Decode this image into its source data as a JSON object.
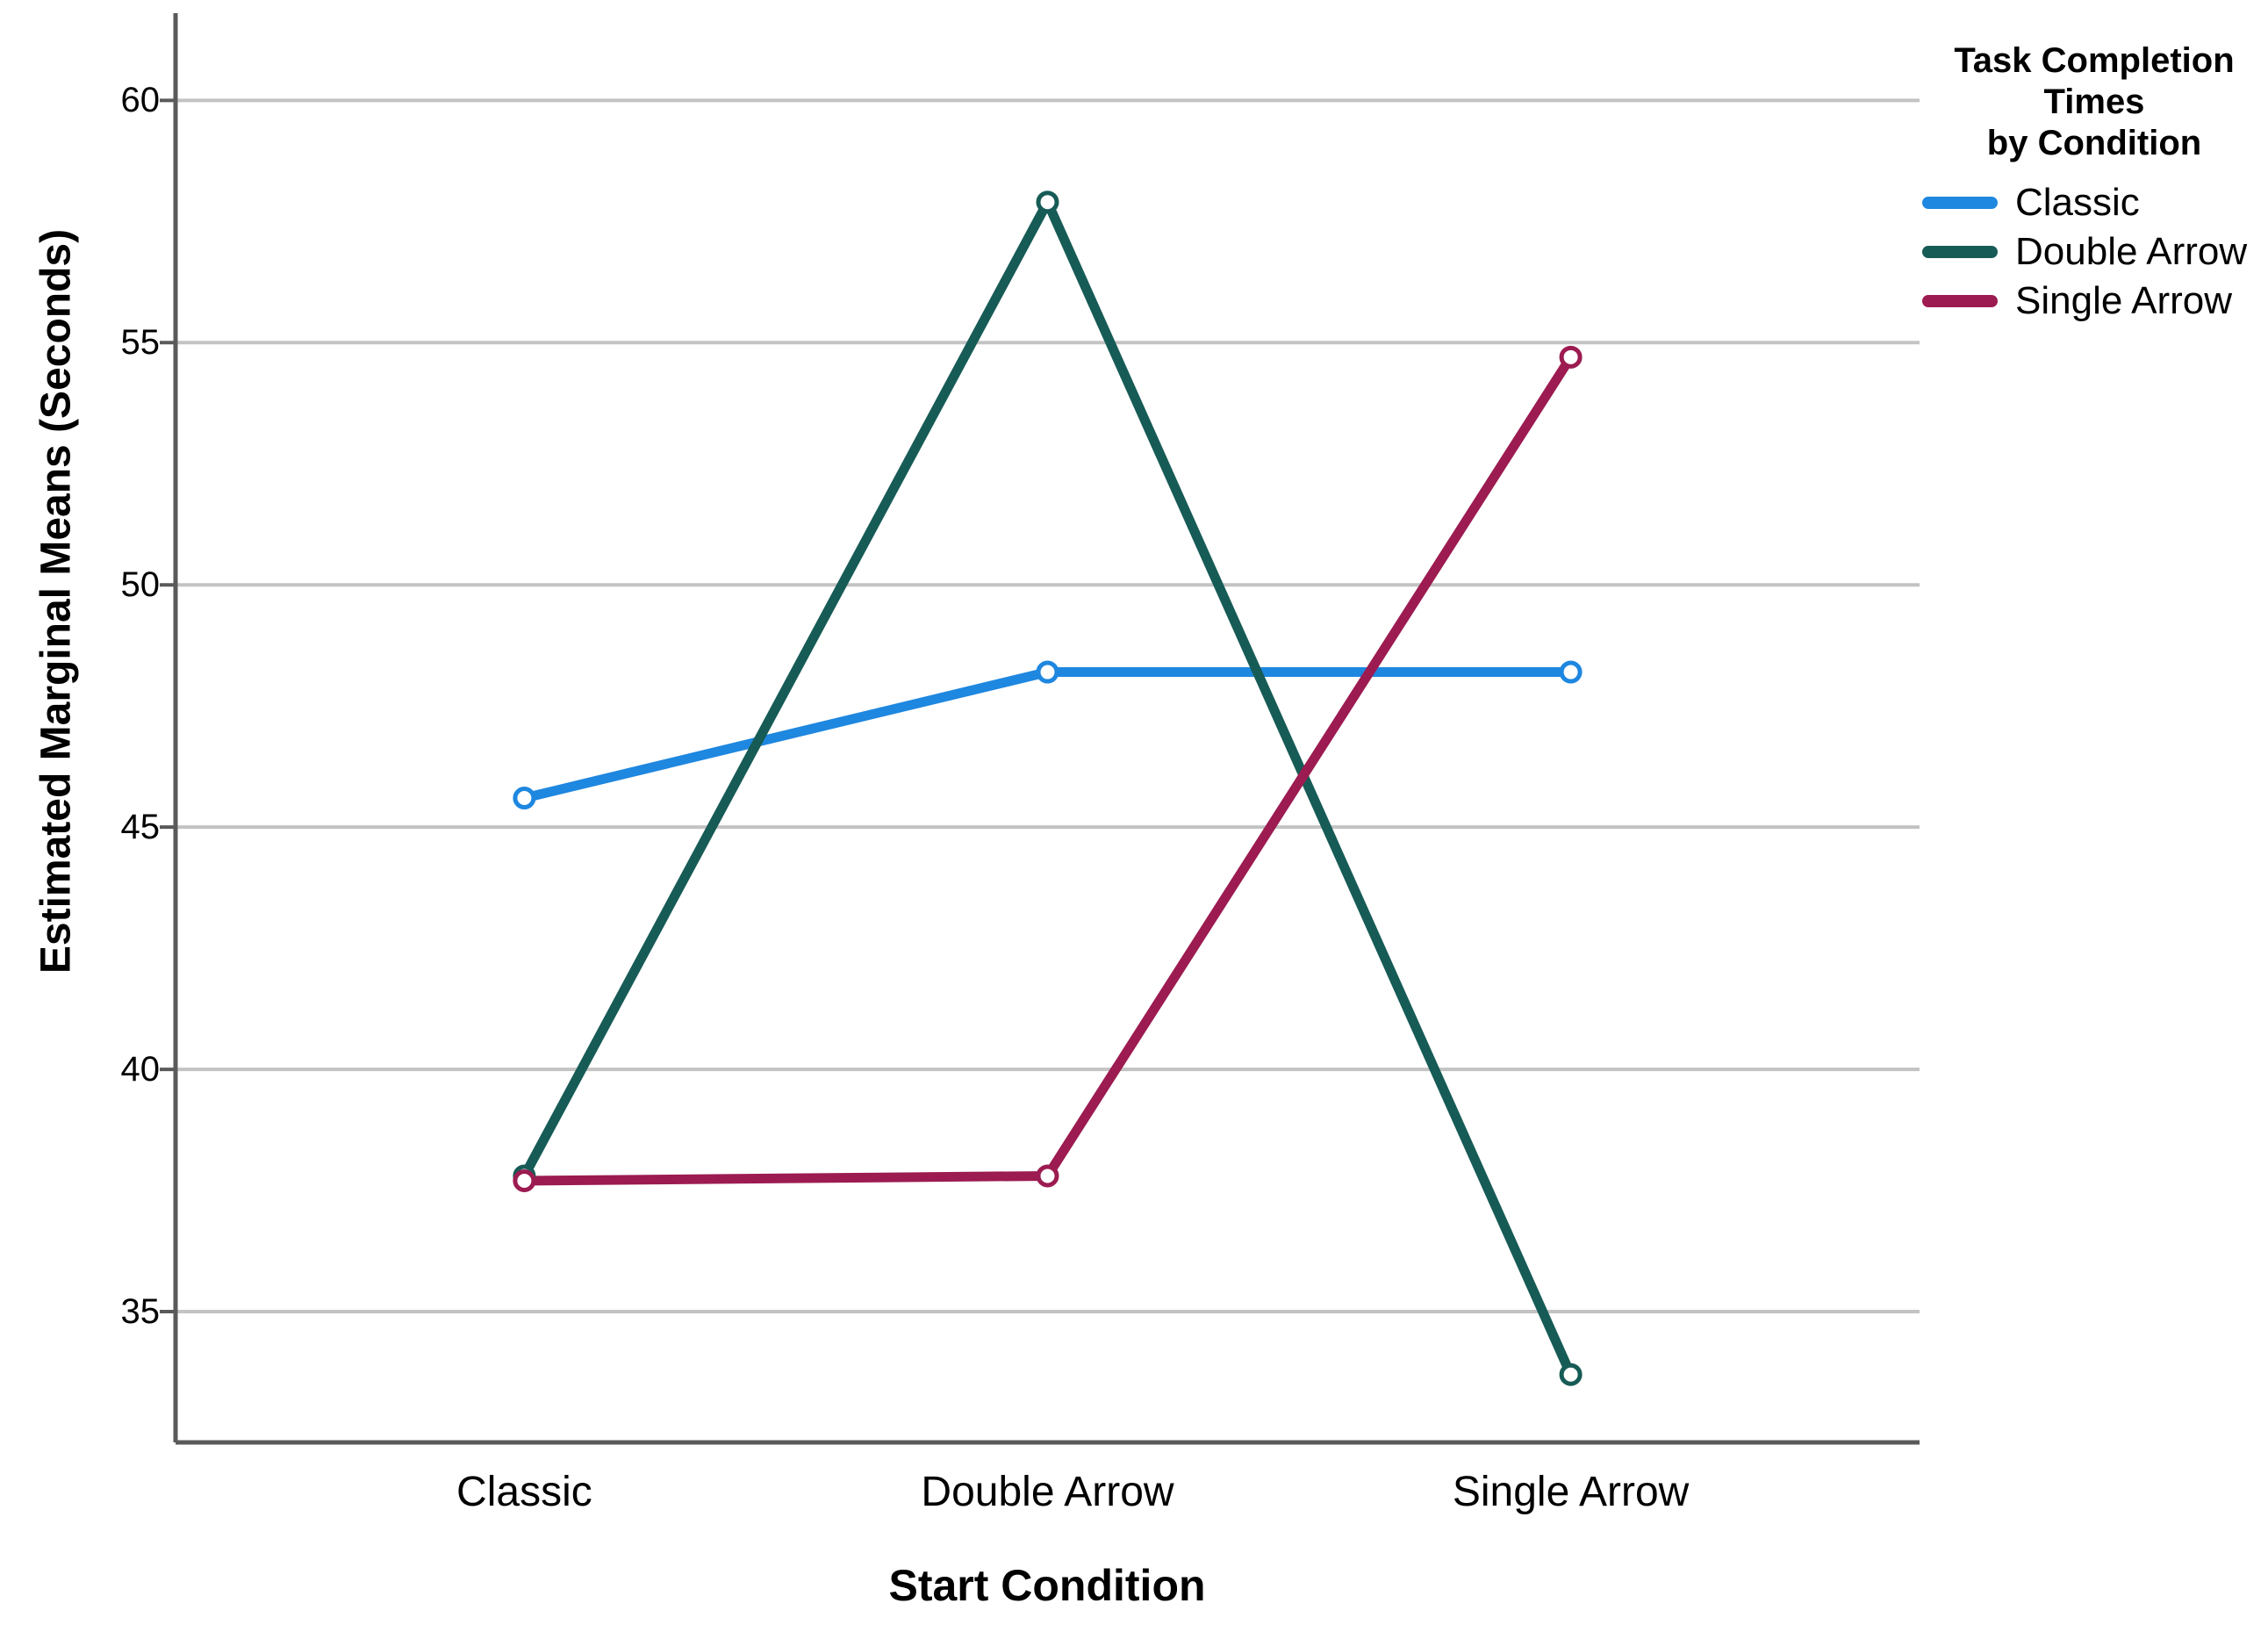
{
  "chart_data": {
    "type": "line",
    "title": "Task Completion Times by Condition",
    "categories": [
      "Classic",
      "Double Arrow",
      "Single Arrow"
    ],
    "series": [
      {
        "name": "Classic",
        "color": "#1E87E0",
        "values": [
          45.6,
          48.2,
          48.2
        ]
      },
      {
        "name": "Double Arrow",
        "color": "#175B56",
        "values": [
          37.8,
          57.9,
          33.7
        ]
      },
      {
        "name": "Single Arrow",
        "color": "#9C1B51",
        "values": [
          37.7,
          37.8,
          54.7
        ]
      }
    ],
    "xlabel": "Start Condition",
    "ylabel": "Estimated Marginal Means (Seconds)",
    "y_ticks": [
      35,
      40,
      45,
      50,
      55,
      60
    ],
    "ylim": [
      32.3,
      61.8
    ],
    "grid": "horizontal",
    "legend_position": "top-right",
    "legend_title_lines": [
      "Task Completion",
      "Times",
      "by Condition"
    ],
    "marker": "open-circle",
    "colors": {
      "grid": "#C3C3C3",
      "axis": "#5A5A5A",
      "background": "#FFFFFF",
      "text": "#000000"
    }
  }
}
